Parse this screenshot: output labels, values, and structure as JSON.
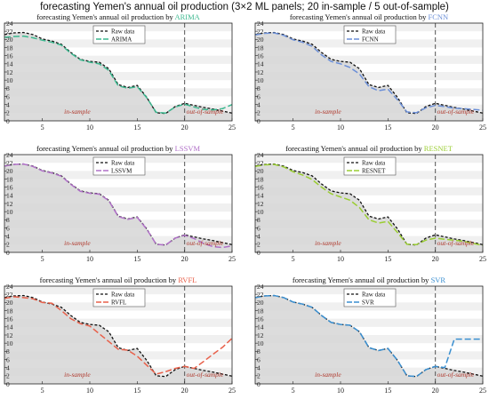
{
  "suptitle": "forecasting Yemen's annual oil production (3×2 ML panels; 20 in-sample / 5 out-of-sample)",
  "chart_data": [
    {
      "type": "line",
      "title_prefix": "forecasting Yemen's annual oil production by",
      "model": "ARIMA",
      "model_color": "#3cb88f",
      "x": [
        1,
        2,
        3,
        4,
        5,
        6,
        7,
        8,
        9,
        10,
        11,
        12,
        13,
        14,
        15,
        16,
        17,
        18,
        19,
        20,
        21,
        22,
        23,
        24,
        25
      ],
      "xticks": [
        5,
        10,
        15,
        20,
        25
      ],
      "yticks": [
        0,
        2,
        4,
        6,
        8,
        10,
        12,
        14,
        16,
        18,
        20,
        22,
        24
      ],
      "xlim": [
        1,
        25
      ],
      "ylim": [
        0,
        24
      ],
      "split_x": 20,
      "annotations": {
        "in_sample": "in-sample",
        "out_of_sample": "out-of-sample"
      },
      "legend": {
        "position": "top-center",
        "raw": "Raw data",
        "model": "ARIMA"
      },
      "series": [
        {
          "name": "Raw data",
          "color": "#111111",
          "values": [
            21.2,
            21.6,
            21.7,
            21.2,
            20.1,
            19.6,
            18.8,
            16.8,
            15.1,
            14.6,
            14.4,
            12.8,
            8.9,
            8.2,
            8.7,
            5.8,
            2.0,
            1.8,
            3.5,
            4.3,
            3.8,
            3.3,
            2.9,
            2.4,
            1.9
          ]
        },
        {
          "name": "ARIMA",
          "color": "#3cb88f",
          "values": [
            20.5,
            20.7,
            20.8,
            20.4,
            19.8,
            19.3,
            18.6,
            16.6,
            15.0,
            14.4,
            14.0,
            12.4,
            8.6,
            8.0,
            8.4,
            5.7,
            2.1,
            1.9,
            3.4,
            4.1,
            3.4,
            2.8,
            2.7,
            3.0,
            4.0
          ]
        }
      ]
    },
    {
      "type": "line",
      "title_prefix": "forecasting Yemen's annual oil production by",
      "model": "FCNN",
      "model_color": "#6b8fd8",
      "x": [
        1,
        2,
        3,
        4,
        5,
        6,
        7,
        8,
        9,
        10,
        11,
        12,
        13,
        14,
        15,
        16,
        17,
        18,
        19,
        20,
        21,
        22,
        23,
        24,
        25
      ],
      "xticks": [
        5,
        10,
        15,
        20,
        25
      ],
      "yticks": [
        0,
        2,
        4,
        6,
        8,
        10,
        12,
        14,
        16,
        18,
        20,
        22,
        24
      ],
      "xlim": [
        1,
        25
      ],
      "ylim": [
        0,
        24
      ],
      "split_x": 20,
      "annotations": {
        "in_sample": "in-sample",
        "out_of_sample": "out-of-sample"
      },
      "legend": {
        "position": "top-center",
        "raw": "Raw data",
        "model": "FCNN"
      },
      "series": [
        {
          "name": "Raw data",
          "color": "#111111",
          "values": [
            21.2,
            21.6,
            21.7,
            21.2,
            20.1,
            19.6,
            18.8,
            16.8,
            15.1,
            14.6,
            14.4,
            12.8,
            8.9,
            8.2,
            8.7,
            5.8,
            2.0,
            1.8,
            3.5,
            4.3,
            3.8,
            3.3,
            2.9,
            2.4,
            1.9
          ]
        },
        {
          "name": "FCNN",
          "color": "#6b8fd8",
          "values": [
            21.1,
            21.5,
            21.6,
            21.0,
            19.9,
            19.3,
            18.3,
            16.2,
            14.6,
            14.0,
            13.1,
            11.5,
            8.4,
            7.4,
            7.8,
            5.2,
            2.2,
            2.0,
            3.2,
            3.8,
            3.5,
            3.1,
            3.0,
            2.8,
            2.6
          ]
        }
      ]
    },
    {
      "type": "line",
      "title_prefix": "forecasting Yemen's annual oil production by",
      "model": "LSSVM",
      "model_color": "#b070c8",
      "x": [
        1,
        2,
        3,
        4,
        5,
        6,
        7,
        8,
        9,
        10,
        11,
        12,
        13,
        14,
        15,
        16,
        17,
        18,
        19,
        20,
        21,
        22,
        23,
        24,
        25
      ],
      "xticks": [
        5,
        10,
        15,
        20,
        25
      ],
      "yticks": [
        0,
        2,
        4,
        6,
        8,
        10,
        12,
        14,
        16,
        18,
        20,
        22,
        24
      ],
      "xlim": [
        1,
        25
      ],
      "ylim": [
        0,
        24
      ],
      "split_x": 20,
      "annotations": {
        "in_sample": "in-sample",
        "out_of_sample": "out-of-sample"
      },
      "legend": {
        "position": "top-center",
        "raw": "Raw data",
        "model": "LSSVM"
      },
      "series": [
        {
          "name": "Raw data",
          "color": "#111111",
          "values": [
            21.2,
            21.6,
            21.7,
            21.2,
            20.1,
            19.6,
            18.8,
            16.8,
            15.1,
            14.6,
            14.4,
            12.8,
            8.9,
            8.2,
            8.7,
            5.8,
            2.0,
            1.8,
            3.5,
            4.3,
            3.8,
            3.3,
            2.9,
            2.4,
            1.9
          ]
        },
        {
          "name": "LSSVM",
          "color": "#b070c8",
          "values": [
            21.2,
            21.6,
            21.7,
            21.1,
            20.0,
            19.5,
            18.7,
            16.7,
            15.0,
            14.5,
            14.3,
            12.7,
            8.8,
            8.1,
            8.6,
            5.7,
            2.0,
            1.8,
            3.5,
            4.2,
            3.4,
            2.2,
            1.4,
            1.2,
            1.6
          ]
        }
      ]
    },
    {
      "type": "line",
      "title_prefix": "forecasting Yemen's annual oil production by",
      "model": "RESNET",
      "model_color": "#9acd32",
      "x": [
        1,
        2,
        3,
        4,
        5,
        6,
        7,
        8,
        9,
        10,
        11,
        12,
        13,
        14,
        15,
        16,
        17,
        18,
        19,
        20,
        21,
        22,
        23,
        24,
        25
      ],
      "xticks": [
        5,
        10,
        15,
        20,
        25
      ],
      "yticks": [
        0,
        2,
        4,
        6,
        8,
        10,
        12,
        14,
        16,
        18,
        20,
        22,
        24
      ],
      "xlim": [
        1,
        25
      ],
      "ylim": [
        0,
        24
      ],
      "split_x": 20,
      "annotations": {
        "in_sample": "in-sample",
        "out_of_sample": "out-of-sample"
      },
      "legend": {
        "position": "top-center",
        "raw": "Raw data",
        "model": "RESNET"
      },
      "series": [
        {
          "name": "Raw data",
          "color": "#111111",
          "values": [
            21.2,
            21.6,
            21.7,
            21.2,
            20.1,
            19.6,
            18.8,
            16.8,
            15.1,
            14.6,
            14.4,
            12.8,
            8.9,
            8.2,
            8.7,
            5.8,
            2.0,
            1.8,
            3.5,
            4.3,
            3.8,
            3.3,
            2.9,
            2.4,
            1.9
          ]
        },
        {
          "name": "RESNET",
          "color": "#9acd32",
          "values": [
            21.1,
            21.5,
            21.6,
            21.0,
            19.8,
            19.0,
            17.9,
            16.0,
            14.4,
            13.6,
            12.8,
            11.0,
            8.0,
            7.2,
            7.6,
            4.9,
            2.0,
            1.9,
            3.0,
            3.5,
            3.2,
            3.0,
            2.7,
            2.2,
            1.7
          ]
        }
      ]
    },
    {
      "type": "line",
      "title_prefix": "forecasting Yemen's annual oil production by",
      "model": "RVFL",
      "model_color": "#e8604a",
      "x": [
        1,
        2,
        3,
        4,
        5,
        6,
        7,
        8,
        9,
        10,
        11,
        12,
        13,
        14,
        15,
        16,
        17,
        18,
        19,
        20,
        21,
        22,
        23,
        24,
        25
      ],
      "xticks": [
        5,
        10,
        15,
        20,
        25
      ],
      "yticks": [
        0,
        2,
        4,
        6,
        8,
        10,
        12,
        14,
        16,
        18,
        20,
        22,
        24
      ],
      "xlim": [
        1,
        25
      ],
      "ylim": [
        0,
        24
      ],
      "split_x": 20,
      "annotations": {
        "in_sample": "in-sample",
        "out_of_sample": "out-of-sample"
      },
      "legend": {
        "position": "top-center",
        "raw": "Raw data",
        "model": "RVFL"
      },
      "series": [
        {
          "name": "Raw data",
          "color": "#111111",
          "values": [
            21.2,
            21.6,
            21.7,
            21.2,
            20.1,
            19.6,
            18.8,
            16.8,
            15.1,
            14.6,
            14.4,
            12.8,
            8.9,
            8.2,
            8.7,
            5.8,
            2.0,
            1.8,
            3.5,
            4.3,
            3.8,
            3.3,
            2.9,
            2.4,
            1.9
          ]
        },
        {
          "name": "RVFL",
          "color": "#e8604a",
          "values": [
            21.0,
            21.4,
            21.2,
            20.9,
            20.0,
            19.8,
            18.0,
            16.0,
            14.8,
            14.2,
            12.3,
            10.4,
            8.5,
            8.3,
            6.8,
            4.6,
            2.4,
            3.0,
            3.8,
            4.3,
            3.8,
            5.5,
            7.3,
            9.0,
            11.2
          ]
        }
      ]
    },
    {
      "type": "line",
      "title_prefix": "forecasting Yemen's annual oil production by",
      "model": "SVR",
      "model_color": "#3a8fd0",
      "x": [
        1,
        2,
        3,
        4,
        5,
        6,
        7,
        8,
        9,
        10,
        11,
        12,
        13,
        14,
        15,
        16,
        17,
        18,
        19,
        20,
        21,
        22,
        23,
        24,
        25
      ],
      "xticks": [
        5,
        10,
        15,
        20,
        25
      ],
      "yticks": [
        0,
        2,
        4,
        6,
        8,
        10,
        12,
        14,
        16,
        18,
        20,
        22,
        24
      ],
      "xlim": [
        1,
        25
      ],
      "ylim": [
        0,
        24
      ],
      "split_x": 20,
      "annotations": {
        "in_sample": "in-sample",
        "out_of_sample": "out-of-sample"
      },
      "legend": {
        "position": "top-center",
        "raw": "Raw data",
        "model": "SVR"
      },
      "series": [
        {
          "name": "Raw data",
          "color": "#111111",
          "values": [
            21.2,
            21.6,
            21.7,
            21.2,
            20.1,
            19.6,
            18.8,
            16.8,
            15.1,
            14.6,
            14.4,
            12.8,
            8.9,
            8.2,
            8.7,
            5.8,
            2.0,
            1.8,
            3.5,
            4.3,
            3.8,
            3.3,
            2.9,
            2.4,
            1.9
          ]
        },
        {
          "name": "SVR",
          "color": "#3a8fd0",
          "values": [
            21.2,
            21.6,
            21.7,
            21.2,
            20.1,
            19.6,
            18.8,
            16.8,
            15.1,
            14.6,
            14.4,
            12.8,
            8.9,
            8.2,
            8.7,
            5.8,
            2.0,
            1.8,
            3.5,
            4.3,
            4.0,
            11.0,
            11.0,
            11.0,
            11.0
          ]
        }
      ]
    }
  ]
}
